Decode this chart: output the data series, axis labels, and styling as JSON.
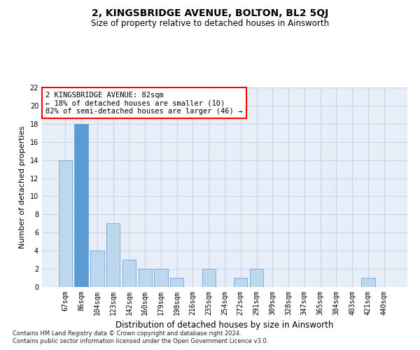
{
  "title": "2, KINGSBRIDGE AVENUE, BOLTON, BL2 5QJ",
  "subtitle": "Size of property relative to detached houses in Ainsworth",
  "xlabel": "Distribution of detached houses by size in Ainsworth",
  "ylabel": "Number of detached properties",
  "categories": [
    "67sqm",
    "86sqm",
    "104sqm",
    "123sqm",
    "142sqm",
    "160sqm",
    "179sqm",
    "198sqm",
    "216sqm",
    "235sqm",
    "254sqm",
    "272sqm",
    "291sqm",
    "309sqm",
    "328sqm",
    "347sqm",
    "365sqm",
    "384sqm",
    "403sqm",
    "421sqm",
    "440sqm"
  ],
  "values": [
    14,
    18,
    4,
    7,
    3,
    2,
    2,
    1,
    0,
    2,
    0,
    1,
    2,
    0,
    0,
    0,
    0,
    0,
    0,
    1,
    0
  ],
  "highlight_index": 1,
  "highlight_color": "#5b9bd5",
  "normal_color": "#bdd7ee",
  "ylim": [
    0,
    22
  ],
  "yticks": [
    0,
    2,
    4,
    6,
    8,
    10,
    12,
    14,
    16,
    18,
    20,
    22
  ],
  "annotation_box_text": "2 KINGSBRIDGE AVENUE: 82sqm\n← 18% of detached houses are smaller (10)\n82% of semi-detached houses are larger (46) →",
  "footnote1": "Contains HM Land Registry data © Crown copyright and database right 2024.",
  "footnote2": "Contains public sector information licensed under the Open Government Licence v3.0.",
  "bar_edge_color": "#5b9bd5",
  "grid_color": "#c8d4e8",
  "bg_color": "#e8eef8",
  "title_fontsize": 10,
  "subtitle_fontsize": 8.5,
  "xlabel_fontsize": 8.5,
  "ylabel_fontsize": 8,
  "tick_fontsize": 7,
  "annot_fontsize": 7.5,
  "footnote_fontsize": 6
}
